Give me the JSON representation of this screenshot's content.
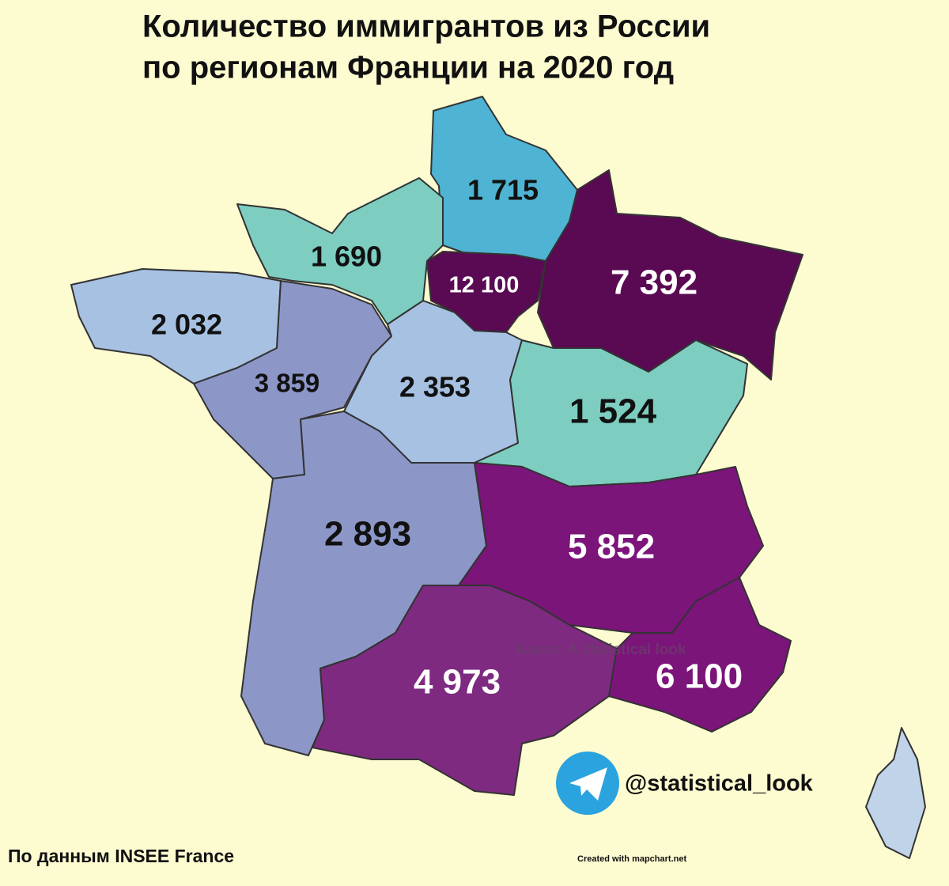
{
  "title": [
    "Количество иммигрантов из России",
    "по регионам Франции на 2020 год"
  ],
  "regions": [
    {
      "label": "1 715",
      "color": "#4fb3d3"
    },
    {
      "label": "1 690",
      "color": "#7dcdc0"
    },
    {
      "label": "12 100",
      "color": "#5a0a52"
    },
    {
      "label": "7 392",
      "color": "#5a0a52"
    },
    {
      "label": "2 032",
      "color": "#a7c1e3"
    },
    {
      "label": "3 859",
      "color": "#8c97c8"
    },
    {
      "label": "2 353",
      "color": "#a7c1e3"
    },
    {
      "label": "1 524",
      "color": "#7dcdc0"
    },
    {
      "label": "2 893",
      "color": "#8c97c8"
    },
    {
      "label": "5 852",
      "color": "#7b157a"
    },
    {
      "label": "4 973",
      "color": "#7e2a80"
    },
    {
      "label": "6 100",
      "color": "#7b157a"
    }
  ],
  "watermark": "Карта: A statistical look",
  "channel": "@statistical_look",
  "source": "По данным INSEE France",
  "credit": "Created with mapchart.net"
}
